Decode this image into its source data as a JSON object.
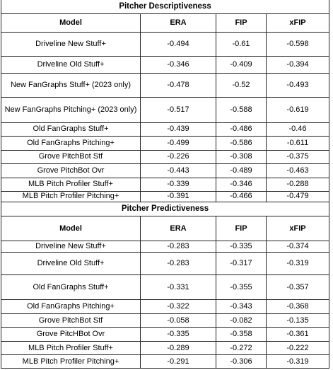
{
  "tables": [
    {
      "title": "Pitcher Descriptiveness",
      "columns": [
        "Model",
        "ERA",
        "FIP",
        "xFIP"
      ],
      "rows": [
        [
          "Driveline New Stuff+",
          "-0.494",
          "-0.61",
          "-0.598"
        ],
        [
          "Driveline Old Stuff+",
          "-0.346",
          "-0.409",
          "-0.394"
        ],
        [
          "New FanGraphs Stuff+ (2023 only)",
          "-0.478",
          "-0.52",
          "-0.493"
        ],
        [
          "New FanGraphs Pitching+ (2023 only)",
          "-0.517",
          "-0.588",
          "-0.619"
        ],
        [
          "Old FanGraphs Stuff+",
          "-0.439",
          "-0.486",
          "-0.46"
        ],
        [
          "Old FanGraphs Pitching+",
          "-0.499",
          "-0.586",
          "-0.611"
        ],
        [
          "Grove PitchBot Stf",
          "-0.226",
          "-0.308",
          "-0.375"
        ],
        [
          "Grove PitchBot Ovr",
          "-0.443",
          "-0.489",
          "-0.463"
        ],
        [
          "MLB Pitch Profiler Stuff+",
          "-0.339",
          "-0.346",
          "-0.288"
        ],
        [
          "MLB Pitch Profiler Pitching+",
          "-0.391",
          "-0.466",
          "-0.479"
        ]
      ]
    },
    {
      "title": "Pitcher Predictiveness",
      "columns": [
        "Model",
        "ERA",
        "FIP",
        "xFIP"
      ],
      "rows": [
        [
          "Driveline New Stuff+",
          "-0.283",
          "-0.335",
          "-0.374"
        ],
        [
          "Driveline Old Stuff+",
          "-0.283",
          "-0.317",
          "-0.319"
        ],
        [
          "Old FanGraphs Stuff+",
          "-0.331",
          "-0.355",
          "-0.357"
        ],
        [
          "Old FanGraphs Pitching+",
          "-0.322",
          "-0.343",
          "-0.368"
        ],
        [
          "Grove PitchBot Stf",
          "-0.058",
          "-0.082",
          "-0.135"
        ],
        [
          "Grove PitcHBot Ovr",
          "-0.335",
          "-0.358",
          "-0.361"
        ],
        [
          "MLB Pitch Profiler Stuff+",
          "-0.289",
          "-0.272",
          "-0.222"
        ],
        [
          "MLB Pitch Profiler Pitching+",
          "-0.291",
          "-0.306",
          "-0.319"
        ]
      ]
    }
  ]
}
